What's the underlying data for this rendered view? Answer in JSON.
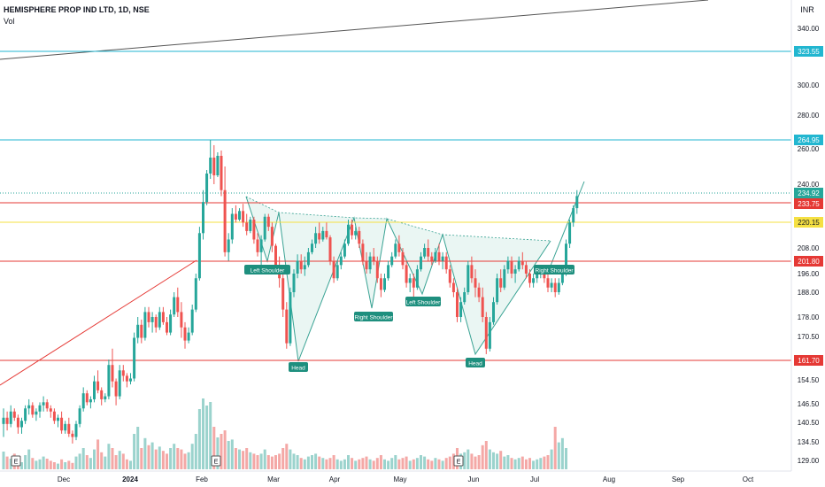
{
  "header": {
    "title": "HEMISPHERE PROP IND LTD, 1D, NSE",
    "indicator": "Vol",
    "currency": "INR"
  },
  "colors": {
    "up": "#26a69a",
    "down": "#ef5350",
    "vol_up": "#9bd3cd",
    "vol_down": "#f4a8a6",
    "cyan_line": "#22b6d0",
    "red_line": "#e53935",
    "yellow_line": "#f5e042",
    "pattern_fill": "#e6f4f1",
    "pattern_stroke": "#3aa394"
  },
  "chart_data": {
    "type": "candlestick",
    "title": "HEMISPHERE PROP IND LTD, 1D, NSE",
    "y_ticks": [
      "340.00",
      "323.55",
      "300.00",
      "280.00",
      "264.95",
      "260.00",
      "240.00",
      "234.92",
      "233.75",
      "220.15",
      "208.00",
      "201.80",
      "196.00",
      "188.00",
      "178.00",
      "170.50",
      "161.70",
      "154.50",
      "146.50",
      "140.50",
      "134.50",
      "129.00"
    ],
    "x_ticks": [
      "Dec",
      "2024",
      "Feb",
      "Mar",
      "Apr",
      "May",
      "Jun",
      "Jul",
      "Aug",
      "Sep",
      "Oct"
    ],
    "price_labels": [
      {
        "value": "323.55",
        "kind": "cyan"
      },
      {
        "value": "264.95",
        "kind": "cyan"
      },
      {
        "value": "234.92",
        "kind": "up"
      },
      {
        "value": "233.75",
        "kind": "down"
      },
      {
        "value": "220.15",
        "kind": "yellow"
      },
      {
        "value": "201.80",
        "kind": "down"
      },
      {
        "value": "161.70",
        "kind": "down"
      }
    ],
    "horizontal_lines": [
      {
        "value": 323.55,
        "color": "cyan"
      },
      {
        "value": 264.95,
        "color": "cyan"
      },
      {
        "value": 233.75,
        "color": "red"
      },
      {
        "value": 220.15,
        "color": "yellow"
      },
      {
        "value": 201.8,
        "color": "red"
      },
      {
        "value": 161.7,
        "color": "red"
      }
    ],
    "pattern_labels": [
      "Left Shoulder",
      "Head",
      "Right Shoulder",
      "Left Shoulder",
      "Head",
      "Right Shoulder"
    ],
    "event_markers": [
      "E",
      "E",
      "E"
    ],
    "price_series": [
      [
        140,
        145,
        136,
        142
      ],
      [
        142,
        144,
        138,
        140
      ],
      [
        140,
        146,
        139,
        144
      ],
      [
        144,
        145,
        141,
        142
      ],
      [
        142,
        143,
        137,
        139
      ],
      [
        139,
        142,
        137,
        141
      ],
      [
        141,
        146,
        140,
        145
      ],
      [
        145,
        148,
        143,
        146
      ],
      [
        146,
        147,
        142,
        143
      ],
      [
        143,
        145,
        141,
        144
      ],
      [
        144,
        147,
        142,
        146
      ],
      [
        146,
        149,
        144,
        147
      ],
      [
        147,
        148,
        144,
        145
      ],
      [
        145,
        146,
        142,
        144
      ],
      [
        144,
        145,
        140,
        141
      ],
      [
        141,
        143,
        139,
        142
      ],
      [
        142,
        144,
        137,
        138
      ],
      [
        138,
        141,
        137,
        140
      ],
      [
        140,
        142,
        136,
        137
      ],
      [
        137,
        138,
        134,
        136
      ],
      [
        136,
        141,
        135,
        140
      ],
      [
        140,
        146,
        139,
        145
      ],
      [
        145,
        152,
        144,
        150
      ],
      [
        150,
        151,
        146,
        147
      ],
      [
        147,
        149,
        145,
        148
      ],
      [
        148,
        156,
        147,
        154
      ],
      [
        154,
        158,
        150,
        151
      ],
      [
        151,
        152,
        146,
        148
      ],
      [
        148,
        150,
        147,
        149
      ],
      [
        149,
        162,
        148,
        160
      ],
      [
        160,
        166,
        152,
        154
      ],
      [
        154,
        155,
        146,
        149
      ],
      [
        149,
        160,
        148,
        158
      ],
      [
        158,
        160,
        154,
        156
      ],
      [
        156,
        157,
        152,
        154
      ],
      [
        154,
        157,
        153,
        155
      ],
      [
        155,
        172,
        154,
        170
      ],
      [
        170,
        178,
        168,
        175
      ],
      [
        175,
        177,
        168,
        170
      ],
      [
        170,
        182,
        169,
        180
      ],
      [
        180,
        182,
        174,
        176
      ],
      [
        176,
        180,
        172,
        178
      ],
      [
        178,
        179,
        172,
        174
      ],
      [
        174,
        182,
        173,
        180
      ],
      [
        180,
        182,
        175,
        176
      ],
      [
        176,
        178,
        171,
        172
      ],
      [
        172,
        181,
        171,
        179
      ],
      [
        179,
        188,
        178,
        186
      ],
      [
        186,
        190,
        178,
        180
      ],
      [
        180,
        184,
        170,
        174
      ],
      [
        174,
        176,
        166,
        169
      ],
      [
        169,
        174,
        168,
        172
      ],
      [
        172,
        183,
        171,
        181
      ],
      [
        181,
        196,
        180,
        194
      ],
      [
        194,
        218,
        193,
        215
      ],
      [
        215,
        238,
        212,
        234
      ],
      [
        234,
        248,
        232,
        246
      ],
      [
        246,
        264.95,
        243,
        255
      ],
      [
        255,
        262,
        240,
        245
      ],
      [
        245,
        258,
        244,
        256
      ],
      [
        256,
        259,
        236,
        238
      ],
      [
        238,
        250,
        204,
        206
      ],
      [
        206,
        215,
        202,
        212
      ],
      [
        212,
        230,
        210,
        226
      ],
      [
        226,
        232,
        220,
        222
      ],
      [
        222,
        230,
        221,
        228
      ],
      [
        228,
        233,
        218,
        220
      ],
      [
        220,
        226,
        214,
        216
      ],
      [
        216,
        224,
        215,
        222
      ],
      [
        222,
        224,
        210,
        212
      ],
      [
        212,
        215,
        204,
        206
      ],
      [
        206,
        214,
        200,
        212
      ],
      [
        212,
        226,
        211,
        224
      ],
      [
        224,
        226,
        216,
        218
      ],
      [
        218,
        220,
        206,
        209
      ],
      [
        209,
        210,
        196,
        198
      ],
      [
        198,
        204,
        190,
        194
      ],
      [
        194,
        196,
        178,
        181
      ],
      [
        181,
        184,
        166,
        168
      ],
      [
        168,
        190,
        167,
        188
      ],
      [
        188,
        198,
        186,
        196
      ],
      [
        196,
        205,
        194,
        202
      ],
      [
        202,
        205,
        196,
        198
      ],
      [
        198,
        204,
        195,
        200
      ],
      [
        200,
        208,
        199,
        206
      ],
      [
        206,
        212,
        205,
        210
      ],
      [
        210,
        218,
        208,
        215
      ],
      [
        215,
        220,
        210,
        212
      ],
      [
        212,
        218,
        211,
        216
      ],
      [
        216,
        220,
        212,
        213
      ],
      [
        213,
        214,
        200,
        202
      ],
      [
        202,
        204,
        192,
        194
      ],
      [
        194,
        202,
        193,
        200
      ],
      [
        200,
        206,
        198,
        204
      ],
      [
        204,
        212,
        203,
        210
      ],
      [
        210,
        222,
        209,
        219
      ],
      [
        219,
        222,
        212,
        214
      ],
      [
        214,
        218,
        212,
        216
      ],
      [
        216,
        218,
        208,
        210
      ],
      [
        210,
        212,
        200,
        202
      ],
      [
        202,
        206,
        196,
        198
      ],
      [
        198,
        206,
        196,
        204
      ],
      [
        204,
        208,
        200,
        202
      ],
      [
        202,
        204,
        192,
        194
      ],
      [
        194,
        196,
        186,
        189
      ],
      [
        189,
        196,
        188,
        194
      ],
      [
        194,
        202,
        193,
        200
      ],
      [
        200,
        206,
        199,
        204
      ],
      [
        204,
        212,
        203,
        210
      ],
      [
        210,
        214,
        204,
        206
      ],
      [
        206,
        208,
        198,
        200
      ],
      [
        200,
        202,
        190,
        192
      ],
      [
        192,
        196,
        188,
        194
      ],
      [
        194,
        196,
        186,
        190
      ],
      [
        190,
        200,
        189,
        198
      ],
      [
        198,
        206,
        197,
        204
      ],
      [
        204,
        210,
        203,
        208
      ],
      [
        208,
        212,
        202,
        204
      ],
      [
        204,
        206,
        200,
        202
      ],
      [
        202,
        208,
        201,
        206
      ],
      [
        206,
        210,
        200,
        202
      ],
      [
        202,
        206,
        198,
        204
      ],
      [
        204,
        206,
        196,
        198
      ],
      [
        198,
        200,
        190,
        192
      ],
      [
        192,
        194,
        186,
        188
      ],
      [
        188,
        190,
        176,
        178
      ],
      [
        178,
        186,
        176,
        184
      ],
      [
        184,
        190,
        183,
        188
      ],
      [
        188,
        202,
        187,
        200
      ],
      [
        200,
        204,
        192,
        194
      ],
      [
        194,
        198,
        186,
        190
      ],
      [
        190,
        192,
        184,
        186
      ],
      [
        186,
        190,
        176,
        178
      ],
      [
        178,
        180,
        164,
        166
      ],
      [
        166,
        178,
        165,
        176
      ],
      [
        176,
        186,
        175,
        184
      ],
      [
        184,
        196,
        183,
        194
      ],
      [
        194,
        198,
        188,
        190
      ],
      [
        190,
        200,
        189,
        198
      ],
      [
        198,
        204,
        196,
        202
      ],
      [
        202,
        204,
        194,
        196
      ],
      [
        196,
        200,
        192,
        198
      ],
      [
        198,
        204,
        197,
        202
      ],
      [
        202,
        206,
        198,
        200
      ],
      [
        200,
        202,
        194,
        196
      ],
      [
        196,
        198,
        190,
        192
      ],
      [
        192,
        196,
        190,
        194
      ],
      [
        194,
        198,
        192,
        196
      ],
      [
        196,
        200,
        194,
        198
      ],
      [
        198,
        200,
        192,
        194
      ],
      [
        194,
        196,
        188,
        190
      ],
      [
        190,
        194,
        188,
        192
      ],
      [
        192,
        194,
        186,
        188
      ],
      [
        188,
        194,
        187,
        192
      ],
      [
        192,
        198,
        191,
        196
      ],
      [
        196,
        212,
        195,
        210
      ],
      [
        210,
        222,
        208,
        220
      ],
      [
        220,
        232,
        218,
        230
      ],
      [
        230,
        238,
        226,
        236
      ]
    ],
    "volume_series": [
      0.25,
      0.18,
      0.15,
      0.22,
      0.12,
      0.1,
      0.2,
      0.28,
      0.16,
      0.12,
      0.14,
      0.18,
      0.15,
      0.12,
      0.1,
      0.08,
      0.14,
      0.1,
      0.12,
      0.09,
      0.18,
      0.22,
      0.3,
      0.2,
      0.16,
      0.28,
      0.42,
      0.24,
      0.18,
      0.36,
      0.3,
      0.2,
      0.26,
      0.22,
      0.14,
      0.12,
      0.5,
      0.6,
      0.3,
      0.44,
      0.34,
      0.38,
      0.28,
      0.32,
      0.26,
      0.22,
      0.3,
      0.36,
      0.3,
      0.28,
      0.22,
      0.24,
      0.36,
      0.5,
      0.85,
      1.0,
      0.9,
      0.95,
      0.6,
      0.45,
      0.5,
      0.55,
      0.4,
      0.42,
      0.3,
      0.28,
      0.26,
      0.3,
      0.24,
      0.22,
      0.2,
      0.22,
      0.28,
      0.2,
      0.18,
      0.2,
      0.22,
      0.3,
      0.36,
      0.28,
      0.22,
      0.2,
      0.16,
      0.14,
      0.18,
      0.2,
      0.22,
      0.18,
      0.16,
      0.14,
      0.16,
      0.2,
      0.14,
      0.12,
      0.14,
      0.2,
      0.16,
      0.12,
      0.14,
      0.16,
      0.18,
      0.14,
      0.12,
      0.16,
      0.2,
      0.14,
      0.12,
      0.16,
      0.2,
      0.14,
      0.16,
      0.18,
      0.12,
      0.14,
      0.16,
      0.2,
      0.18,
      0.14,
      0.12,
      0.16,
      0.14,
      0.12,
      0.16,
      0.18,
      0.22,
      0.3,
      0.22,
      0.24,
      0.28,
      0.22,
      0.18,
      0.2,
      0.34,
      0.4,
      0.28,
      0.24,
      0.22,
      0.26,
      0.18,
      0.2,
      0.16,
      0.14,
      0.16,
      0.18,
      0.14,
      0.16,
      0.12,
      0.14,
      0.16,
      0.18,
      0.2,
      0.28,
      0.6,
      0.38,
      0.44,
      0.3
    ]
  }
}
